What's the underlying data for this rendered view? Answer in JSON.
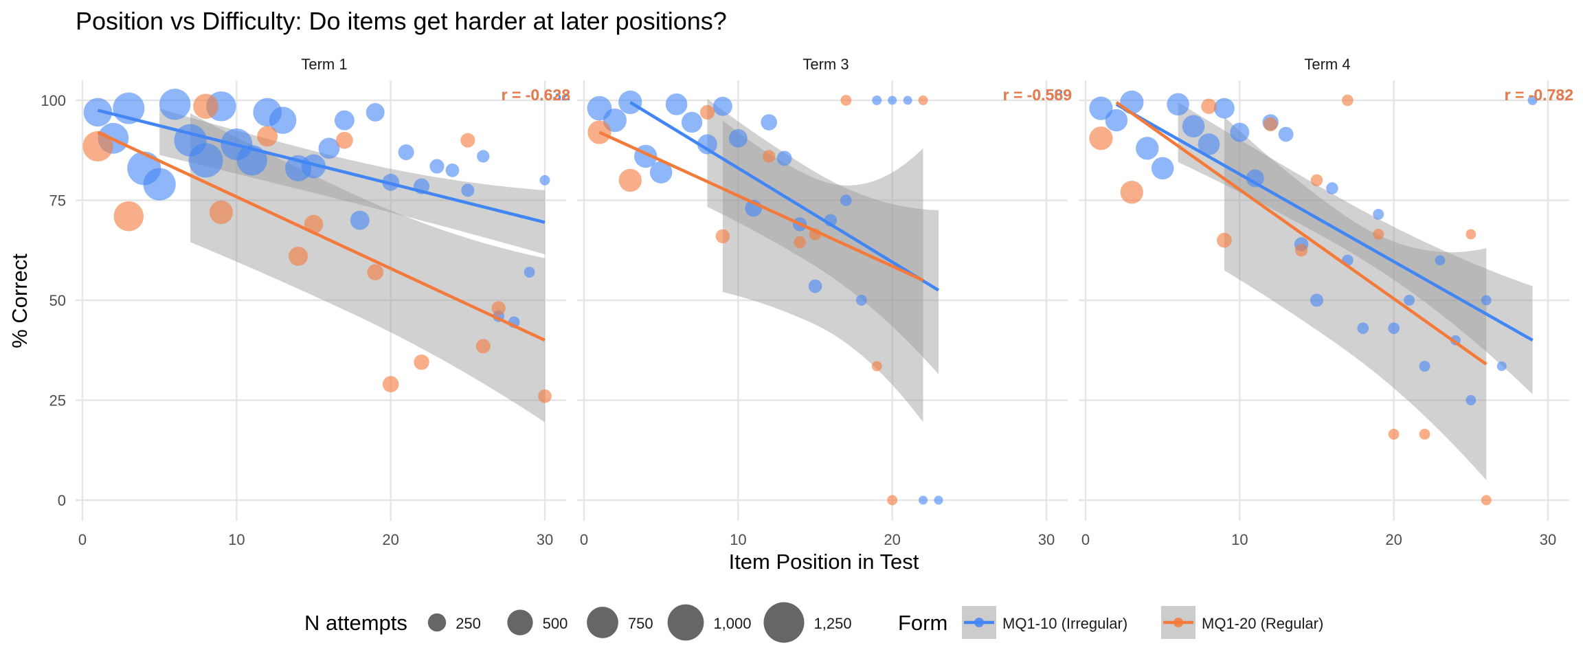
{
  "chart_data": {
    "type": "scatter",
    "title": "Position vs Difficulty: Do items get harder at later positions?",
    "xlabel": "Item Position in Test",
    "ylabel": "% Correct",
    "xlim": [
      0,
      30
    ],
    "ylim": [
      0,
      100
    ],
    "x_ticks": [
      0,
      10,
      20,
      30
    ],
    "y_ticks": [
      0,
      25,
      50,
      75,
      100
    ],
    "grid": true,
    "size_legend": {
      "title": "N attempts",
      "values": [
        250,
        500,
        750,
        1000,
        1250
      ],
      "labels": [
        "250",
        "500",
        "750",
        "1,000",
        "1,250"
      ]
    },
    "color_legend": {
      "title": "Form",
      "entries": [
        {
          "name": "MQ1-10 (Irregular)",
          "color": "#4285F4"
        },
        {
          "name": "MQ1-20 (Regular)",
          "color": "#F47A3B"
        }
      ]
    },
    "panels": [
      {
        "name": "Term 1",
        "series": [
          {
            "name": "MQ1-10 (Irregular)",
            "color": "#4285F4",
            "r_label": "r = -0.632",
            "fit": {
              "x": [
                1,
                30
              ],
              "y": [
                97.5,
                69.5
              ]
            },
            "ci_x": [
              5,
              30
            ],
            "ci_lower": [
              86.5,
              61.5
            ],
            "ci_upper": [
              97.0,
              77.5
            ],
            "points": [
              {
                "x": 1,
                "y": 97,
                "n": 620
              },
              {
                "x": 2,
                "y": 90.5,
                "n": 720
              },
              {
                "x": 3,
                "y": 98,
                "n": 760
              },
              {
                "x": 4,
                "y": 83,
                "n": 860
              },
              {
                "x": 5,
                "y": 79,
                "n": 800
              },
              {
                "x": 6,
                "y": 99,
                "n": 740
              },
              {
                "x": 7,
                "y": 90,
                "n": 800
              },
              {
                "x": 8,
                "y": 85,
                "n": 900
              },
              {
                "x": 9,
                "y": 98.5,
                "n": 680
              },
              {
                "x": 10,
                "y": 89,
                "n": 760
              },
              {
                "x": 11,
                "y": 85,
                "n": 700
              },
              {
                "x": 12,
                "y": 97,
                "n": 620
              },
              {
                "x": 13,
                "y": 95,
                "n": 560
              },
              {
                "x": 14,
                "y": 83,
                "n": 520
              },
              {
                "x": 15,
                "y": 83.5,
                "n": 440
              },
              {
                "x": 16,
                "y": 88,
                "n": 340
              },
              {
                "x": 17,
                "y": 95,
                "n": 300
              },
              {
                "x": 18,
                "y": 70,
                "n": 280
              },
              {
                "x": 19,
                "y": 97,
                "n": 260
              },
              {
                "x": 20,
                "y": 79.5,
                "n": 220
              },
              {
                "x": 21,
                "y": 87,
                "n": 190
              },
              {
                "x": 22,
                "y": 78.5,
                "n": 190
              },
              {
                "x": 23,
                "y": 83.5,
                "n": 160
              },
              {
                "x": 24,
                "y": 82.5,
                "n": 140
              },
              {
                "x": 25,
                "y": 77.5,
                "n": 130
              },
              {
                "x": 26,
                "y": 86,
                "n": 120
              },
              {
                "x": 27,
                "y": 46,
                "n": 100
              },
              {
                "x": 28,
                "y": 44.5,
                "n": 100
              },
              {
                "x": 29,
                "y": 57,
                "n": 90
              },
              {
                "x": 30,
                "y": 80,
                "n": 80
              }
            ]
          },
          {
            "name": "MQ1-20 (Regular)",
            "color": "#F47A3B",
            "r_label": "r = -0.628",
            "fit": {
              "x": [
                1,
                30
              ],
              "y": [
                92.0,
                40.0
              ]
            },
            "ci_x": [
              7,
              30
            ],
            "ci_lower": [
              65.5,
              19.5
            ],
            "ci_upper": [
              95.5,
              60.5
            ],
            "points": [
              {
                "x": 1,
                "y": 88.5,
                "n": 700
              },
              {
                "x": 3,
                "y": 71,
                "n": 680
              },
              {
                "x": 8,
                "y": 98.5,
                "n": 480
              },
              {
                "x": 9,
                "y": 72,
                "n": 420
              },
              {
                "x": 12,
                "y": 91,
                "n": 320
              },
              {
                "x": 14,
                "y": 61,
                "n": 280
              },
              {
                "x": 15,
                "y": 69,
                "n": 270
              },
              {
                "x": 17,
                "y": 90,
                "n": 220
              },
              {
                "x": 19,
                "y": 57,
                "n": 200
              },
              {
                "x": 20,
                "y": 29,
                "n": 200
              },
              {
                "x": 22,
                "y": 34.5,
                "n": 180
              },
              {
                "x": 25,
                "y": 90,
                "n": 160
              },
              {
                "x": 26,
                "y": 38.5,
                "n": 160
              },
              {
                "x": 27,
                "y": 48,
                "n": 150
              },
              {
                "x": 30,
                "y": 26,
                "n": 140
              }
            ]
          }
        ]
      },
      {
        "name": "Term 3",
        "series": [
          {
            "name": "MQ1-10 (Irregular)",
            "color": "#4285F4",
            "r_label": "r = -0.589",
            "fit": {
              "x": [
                3,
                23
              ],
              "y": [
                99.5,
                52.5
              ]
            },
            "ci_x": [
              8,
              23
            ],
            "ci_lower": [
              75.0,
              31.5
            ],
            "ci_upper": [
              98.5,
              72.5
            ],
            "points": [
              {
                "x": 1,
                "y": 98,
                "n": 460
              },
              {
                "x": 2,
                "y": 95,
                "n": 420
              },
              {
                "x": 3,
                "y": 99.5,
                "n": 420
              },
              {
                "x": 4,
                "y": 86,
                "n": 400
              },
              {
                "x": 5,
                "y": 82,
                "n": 380
              },
              {
                "x": 6,
                "y": 99,
                "n": 360
              },
              {
                "x": 7,
                "y": 94.5,
                "n": 330
              },
              {
                "x": 8,
                "y": 89,
                "n": 300
              },
              {
                "x": 9,
                "y": 98.5,
                "n": 280
              },
              {
                "x": 10,
                "y": 90.5,
                "n": 260
              },
              {
                "x": 11,
                "y": 73,
                "n": 220
              },
              {
                "x": 12,
                "y": 94.5,
                "n": 200
              },
              {
                "x": 13,
                "y": 85.5,
                "n": 170
              },
              {
                "x": 14,
                "y": 69,
                "n": 150
              },
              {
                "x": 15,
                "y": 53.5,
                "n": 140
              },
              {
                "x": 16,
                "y": 70,
                "n": 120
              },
              {
                "x": 17,
                "y": 75,
                "n": 100
              },
              {
                "x": 18,
                "y": 50,
                "n": 90
              },
              {
                "x": 19,
                "y": 100,
                "n": 70
              },
              {
                "x": 20,
                "y": 100,
                "n": 60
              },
              {
                "x": 21,
                "y": 100,
                "n": 60
              },
              {
                "x": 22,
                "y": 0,
                "n": 60
              },
              {
                "x": 23,
                "y": 0,
                "n": 60
              }
            ]
          },
          {
            "name": "MQ1-20 (Regular)",
            "color": "#F47A3B",
            "r_label": "r = -0.569",
            "fit": {
              "x": [
                1,
                22
              ],
              "y": [
                92.0,
                55.0
              ]
            },
            "ci_x": [
              9,
              22
            ],
            "ci_lower": [
              54.5,
              19.5
            ],
            "ci_upper": [
              91.0,
              88.0
            ],
            "points": [
              {
                "x": 1,
                "y": 92,
                "n": 420
              },
              {
                "x": 3,
                "y": 80,
                "n": 400
              },
              {
                "x": 8,
                "y": 97,
                "n": 160
              },
              {
                "x": 9,
                "y": 66,
                "n": 150
              },
              {
                "x": 12,
                "y": 86,
                "n": 120
              },
              {
                "x": 14,
                "y": 64.5,
                "n": 110
              },
              {
                "x": 15,
                "y": 66.5,
                "n": 110
              },
              {
                "x": 17,
                "y": 100,
                "n": 90
              },
              {
                "x": 19,
                "y": 33.5,
                "n": 80
              },
              {
                "x": 20,
                "y": 0,
                "n": 80
              },
              {
                "x": 22,
                "y": 100,
                "n": 70
              }
            ]
          }
        ]
      },
      {
        "name": "Term 4",
        "series": [
          {
            "name": "MQ1-10 (Irregular)",
            "color": "#4285F4",
            "r_label": "r = -0.732",
            "fit": {
              "x": [
                2,
                29
              ],
              "y": [
                99.0,
                40.0
              ]
            },
            "ci_x": [
              6,
              29
            ],
            "ci_lower": [
              86.5,
              26.5
            ],
            "ci_upper": [
              98.5,
              53.5
            ],
            "points": [
              {
                "x": 1,
                "y": 98,
                "n": 420
              },
              {
                "x": 2,
                "y": 95,
                "n": 380
              },
              {
                "x": 3,
                "y": 99.5,
                "n": 420
              },
              {
                "x": 4,
                "y": 88,
                "n": 400
              },
              {
                "x": 5,
                "y": 83,
                "n": 380
              },
              {
                "x": 6,
                "y": 99,
                "n": 380
              },
              {
                "x": 7,
                "y": 93.5,
                "n": 380
              },
              {
                "x": 8,
                "y": 89,
                "n": 360
              },
              {
                "x": 9,
                "y": 98,
                "n": 320
              },
              {
                "x": 10,
                "y": 92,
                "n": 280
              },
              {
                "x": 11,
                "y": 80.5,
                "n": 240
              },
              {
                "x": 12,
                "y": 94.5,
                "n": 200
              },
              {
                "x": 13,
                "y": 91.5,
                "n": 170
              },
              {
                "x": 14,
                "y": 64,
                "n": 150
              },
              {
                "x": 15,
                "y": 50,
                "n": 130
              },
              {
                "x": 16,
                "y": 78,
                "n": 110
              },
              {
                "x": 17,
                "y": 60,
                "n": 100
              },
              {
                "x": 18,
                "y": 43,
                "n": 100
              },
              {
                "x": 19,
                "y": 71.5,
                "n": 90
              },
              {
                "x": 20,
                "y": 43,
                "n": 100
              },
              {
                "x": 21,
                "y": 50,
                "n": 90
              },
              {
                "x": 22,
                "y": 33.5,
                "n": 90
              },
              {
                "x": 23,
                "y": 60,
                "n": 80
              },
              {
                "x": 24,
                "y": 40,
                "n": 80
              },
              {
                "x": 25,
                "y": 25,
                "n": 80
              },
              {
                "x": 26,
                "y": 50,
                "n": 80
              },
              {
                "x": 27,
                "y": 33.5,
                "n": 70
              },
              {
                "x": 29,
                "y": 100,
                "n": 70
              }
            ]
          },
          {
            "name": "MQ1-20 (Regular)",
            "color": "#F47A3B",
            "r_label": "r = -0.782",
            "fit": {
              "x": [
                2,
                26
              ],
              "y": [
                99.5,
                34.0
              ]
            },
            "ci_x": [
              9,
              26
            ],
            "ci_lower": [
              59.0,
              5.0
            ],
            "ci_upper": [
              92.5,
              63.0
            ],
            "points": [
              {
                "x": 1,
                "y": 90.5,
                "n": 420
              },
              {
                "x": 3,
                "y": 77,
                "n": 400
              },
              {
                "x": 8,
                "y": 98.5,
                "n": 180
              },
              {
                "x": 9,
                "y": 65,
                "n": 170
              },
              {
                "x": 12,
                "y": 94,
                "n": 150
              },
              {
                "x": 14,
                "y": 62.5,
                "n": 120
              },
              {
                "x": 15,
                "y": 80,
                "n": 110
              },
              {
                "x": 17,
                "y": 100,
                "n": 100
              },
              {
                "x": 19,
                "y": 66.5,
                "n": 90
              },
              {
                "x": 20,
                "y": 16.5,
                "n": 90
              },
              {
                "x": 22,
                "y": 16.5,
                "n": 90
              },
              {
                "x": 25,
                "y": 66.5,
                "n": 80
              },
              {
                "x": 26,
                "y": 0,
                "n": 80
              }
            ]
          }
        ]
      }
    ]
  }
}
